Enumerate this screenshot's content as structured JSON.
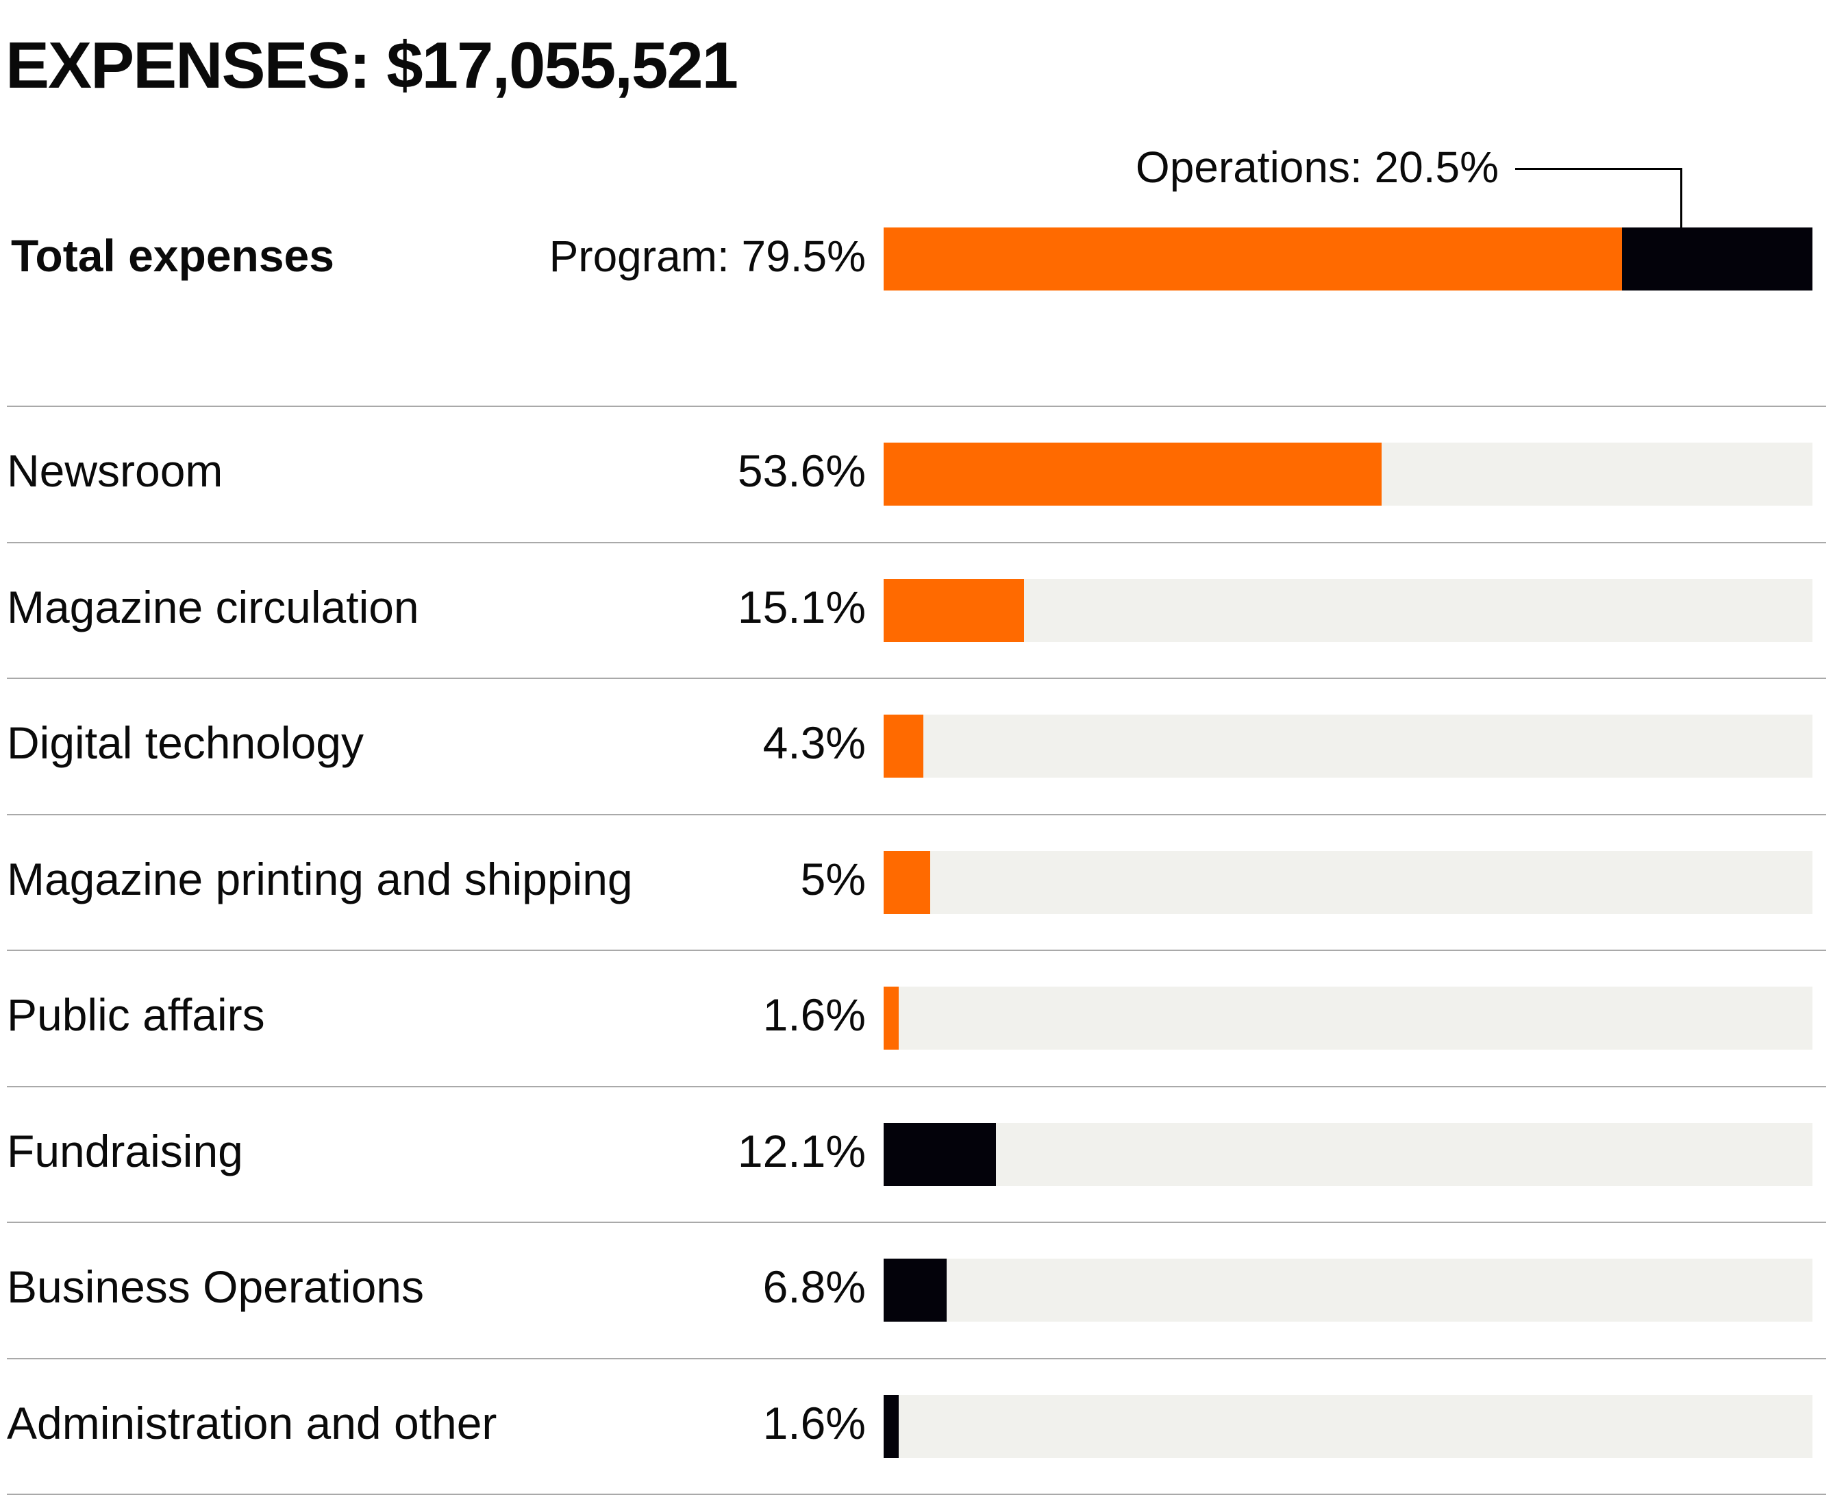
{
  "colors": {
    "program": "#ff6a00",
    "operations": "#03020a",
    "track": "#f1f1ed"
  },
  "chart_data": {
    "type": "bar",
    "title": "EXPENSES: $17,055,521",
    "total": {
      "label": "Total expenses",
      "program": {
        "label": "Program: 79.5%",
        "value": 79.5
      },
      "operations": {
        "label": "Operations: 20.5%",
        "value": 20.5
      }
    },
    "xlim": [
      0,
      100
    ],
    "categories": [
      "Newsroom",
      "Magazine circulation",
      "Digital technology",
      "Magazine printing and shipping",
      "Public affairs",
      "Fundraising",
      "Business Operations",
      "Administration and other"
    ],
    "values": [
      53.6,
      15.1,
      4.3,
      5,
      1.6,
      12.1,
      6.8,
      1.6
    ],
    "value_labels": [
      "53.6%",
      "15.1%",
      "4.3%",
      "5%",
      "1.6%",
      "12.1%",
      "6.8%",
      "1.6%"
    ],
    "groups": [
      "program",
      "program",
      "program",
      "program",
      "program",
      "operations",
      "operations",
      "operations"
    ]
  }
}
